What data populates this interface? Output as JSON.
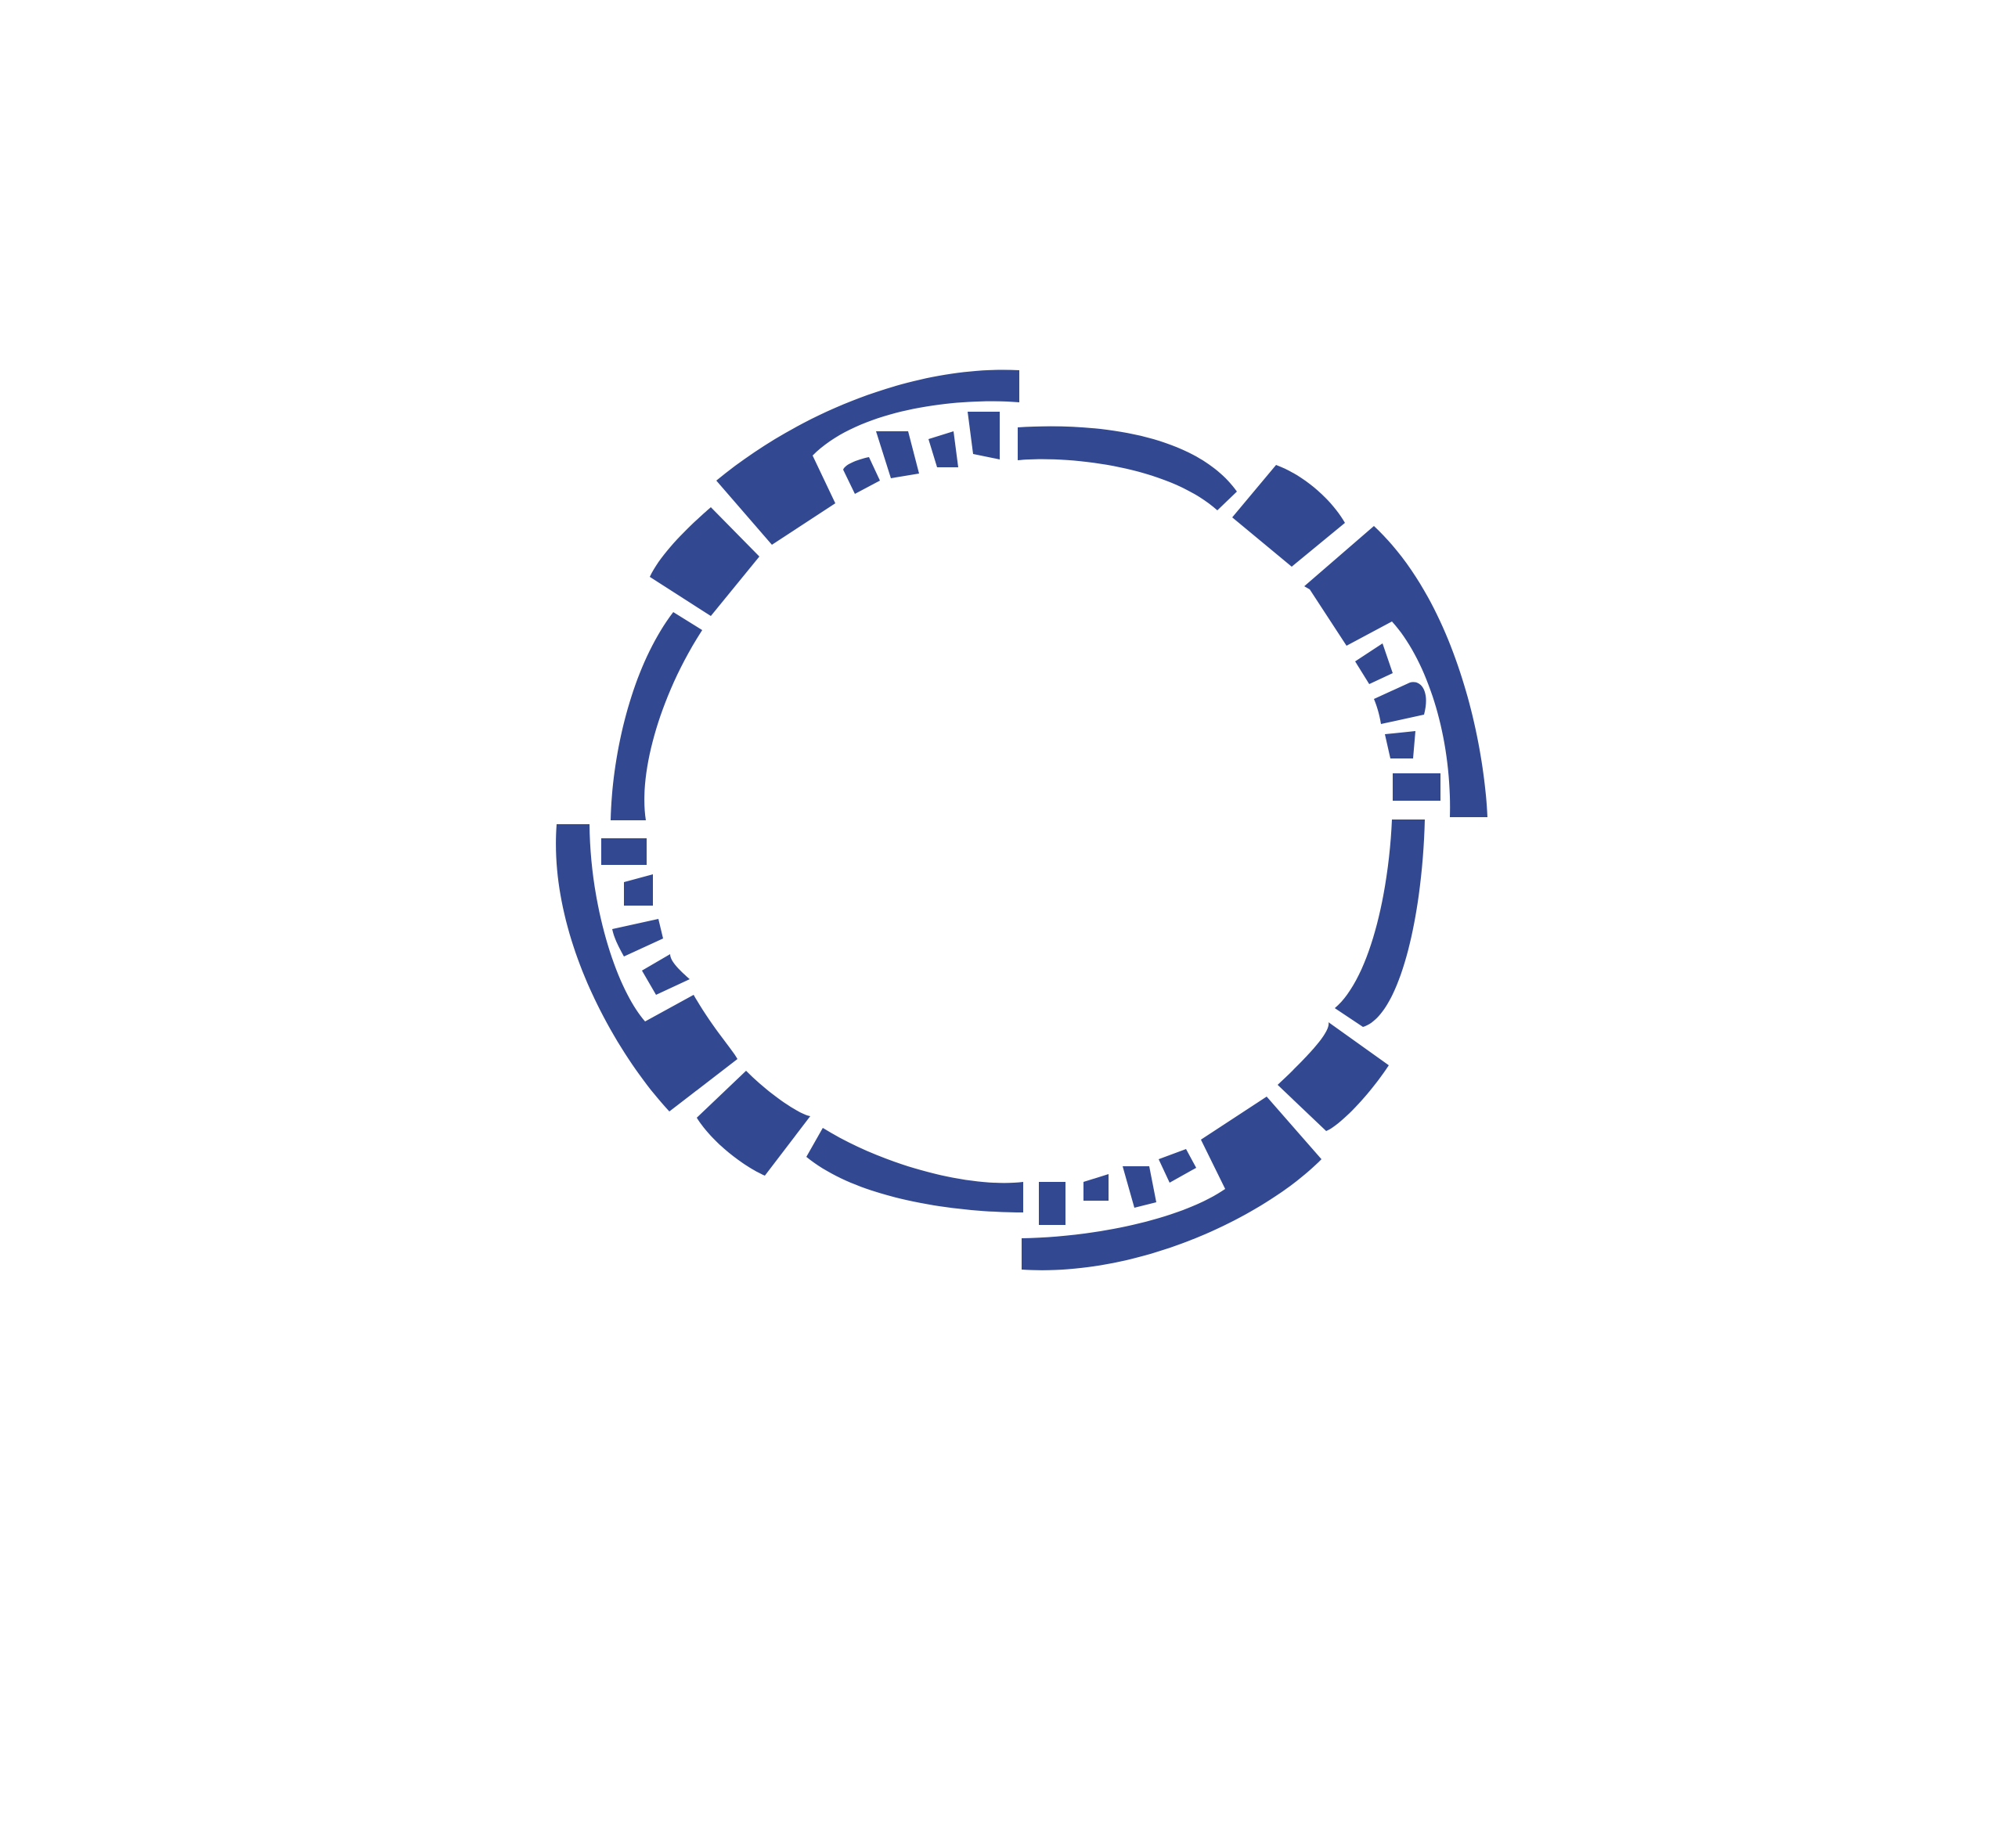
{
  "logo": {
    "name": "segmented-ring-logo",
    "colors": {
      "primary": "#324992",
      "background": "#ffffff"
    }
  }
}
